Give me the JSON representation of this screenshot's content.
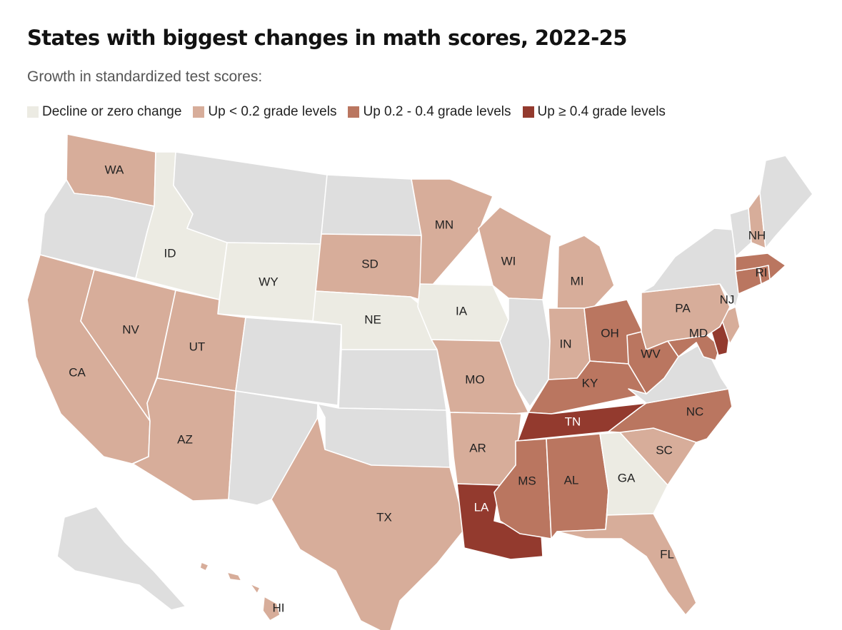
{
  "title": "States with biggest changes in math scores, 2022-25",
  "subtitle": "Growth in standardized test scores:",
  "colors": {
    "none": "#dedede",
    "decline": "#ecebe3",
    "low": "#d7ad9a",
    "mid": "#ba7660",
    "high": "#933a2e"
  },
  "legend": [
    {
      "key": "decline",
      "label": "Decline or zero change"
    },
    {
      "key": "low",
      "label": "Up < 0.2 grade levels"
    },
    {
      "key": "mid",
      "label": "Up 0.2 - 0.4 grade levels"
    },
    {
      "key": "high",
      "label": "Up ≥ 0.4 grade levels"
    }
  ],
  "states": [
    {
      "code": "WA",
      "label": "WA",
      "cat": "low"
    },
    {
      "code": "OR",
      "label": "",
      "cat": "none"
    },
    {
      "code": "CA",
      "label": "CA",
      "cat": "low"
    },
    {
      "code": "NV",
      "label": "NV",
      "cat": "low"
    },
    {
      "code": "ID",
      "label": "ID",
      "cat": "decline"
    },
    {
      "code": "MT",
      "label": "",
      "cat": "none"
    },
    {
      "code": "WY",
      "label": "WY",
      "cat": "decline"
    },
    {
      "code": "UT",
      "label": "UT",
      "cat": "low"
    },
    {
      "code": "AZ",
      "label": "AZ",
      "cat": "low"
    },
    {
      "code": "CO",
      "label": "",
      "cat": "none"
    },
    {
      "code": "NM",
      "label": "",
      "cat": "none"
    },
    {
      "code": "ND",
      "label": "",
      "cat": "none"
    },
    {
      "code": "SD",
      "label": "SD",
      "cat": "low"
    },
    {
      "code": "NE",
      "label": "NE",
      "cat": "decline"
    },
    {
      "code": "KS",
      "label": "",
      "cat": "none"
    },
    {
      "code": "OK",
      "label": "",
      "cat": "none"
    },
    {
      "code": "TX",
      "label": "TX",
      "cat": "low"
    },
    {
      "code": "MN",
      "label": "MN",
      "cat": "low"
    },
    {
      "code": "IA",
      "label": "IA",
      "cat": "decline"
    },
    {
      "code": "MO",
      "label": "MO",
      "cat": "low"
    },
    {
      "code": "AR",
      "label": "AR",
      "cat": "low"
    },
    {
      "code": "LA",
      "label": "LA",
      "cat": "high"
    },
    {
      "code": "WI",
      "label": "WI",
      "cat": "low"
    },
    {
      "code": "IL",
      "label": "",
      "cat": "none"
    },
    {
      "code": "MI",
      "label": "MI",
      "cat": "low"
    },
    {
      "code": "IN",
      "label": "IN",
      "cat": "low"
    },
    {
      "code": "OH",
      "label": "OH",
      "cat": "mid"
    },
    {
      "code": "KY",
      "label": "KY",
      "cat": "mid"
    },
    {
      "code": "TN",
      "label": "TN",
      "cat": "high"
    },
    {
      "code": "MS",
      "label": "MS",
      "cat": "mid"
    },
    {
      "code": "AL",
      "label": "AL",
      "cat": "mid"
    },
    {
      "code": "GA",
      "label": "GA",
      "cat": "decline"
    },
    {
      "code": "FL",
      "label": "FL",
      "cat": "low"
    },
    {
      "code": "SC",
      "label": "SC",
      "cat": "low"
    },
    {
      "code": "NC",
      "label": "NC",
      "cat": "mid"
    },
    {
      "code": "VA",
      "label": "",
      "cat": "none"
    },
    {
      "code": "WV",
      "label": "WV",
      "cat": "mid"
    },
    {
      "code": "MD",
      "label": "MD",
      "cat": "mid"
    },
    {
      "code": "DE",
      "label": "",
      "cat": "high"
    },
    {
      "code": "NJ",
      "label": "NJ",
      "cat": "low"
    },
    {
      "code": "PA",
      "label": "PA",
      "cat": "low"
    },
    {
      "code": "NY",
      "label": "",
      "cat": "none"
    },
    {
      "code": "CT",
      "label": "",
      "cat": "mid"
    },
    {
      "code": "RI",
      "label": "RI",
      "cat": "mid"
    },
    {
      "code": "MA",
      "label": "",
      "cat": "mid"
    },
    {
      "code": "VT",
      "label": "",
      "cat": "none"
    },
    {
      "code": "NH",
      "label": "NH",
      "cat": "low"
    },
    {
      "code": "ME",
      "label": "",
      "cat": "none"
    },
    {
      "code": "AK",
      "label": "",
      "cat": "none"
    },
    {
      "code": "HI",
      "label": "HI",
      "cat": "low"
    }
  ]
}
